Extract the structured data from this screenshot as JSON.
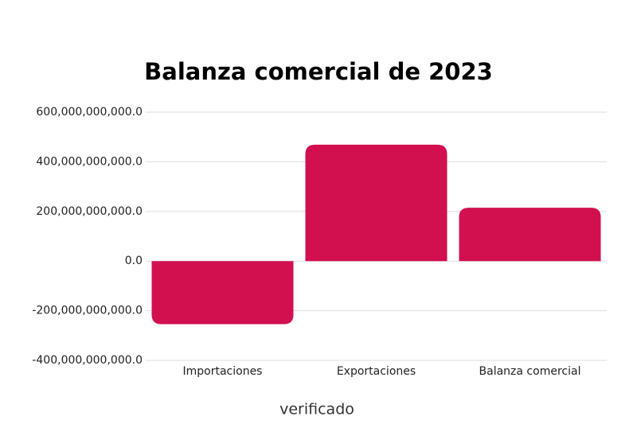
{
  "chart_data": {
    "type": "bar",
    "title": "Balanza comercial de 2023",
    "categories": [
      "Importaciones",
      "Exportaciones",
      "Balanza comercial"
    ],
    "values": [
      -254000000000,
      469000000000,
      215000000000
    ],
    "color": "#d20f4f",
    "ylim": [
      -400000000000,
      600000000000
    ],
    "yticks": [
      {
        "value": -400000000000,
        "label": "-400,000,000,000.0"
      },
      {
        "value": -200000000000,
        "label": "-200,000,000,000.0"
      },
      {
        "value": 0,
        "label": "0.0"
      },
      {
        "value": 200000000000,
        "label": "200,000,000,000.0"
      },
      {
        "value": 400000000000,
        "label": "400,000,000,000.0"
      },
      {
        "value": 600000000000,
        "label": "600,000,000,000.0"
      }
    ],
    "grid": true,
    "logo": "verificado"
  }
}
